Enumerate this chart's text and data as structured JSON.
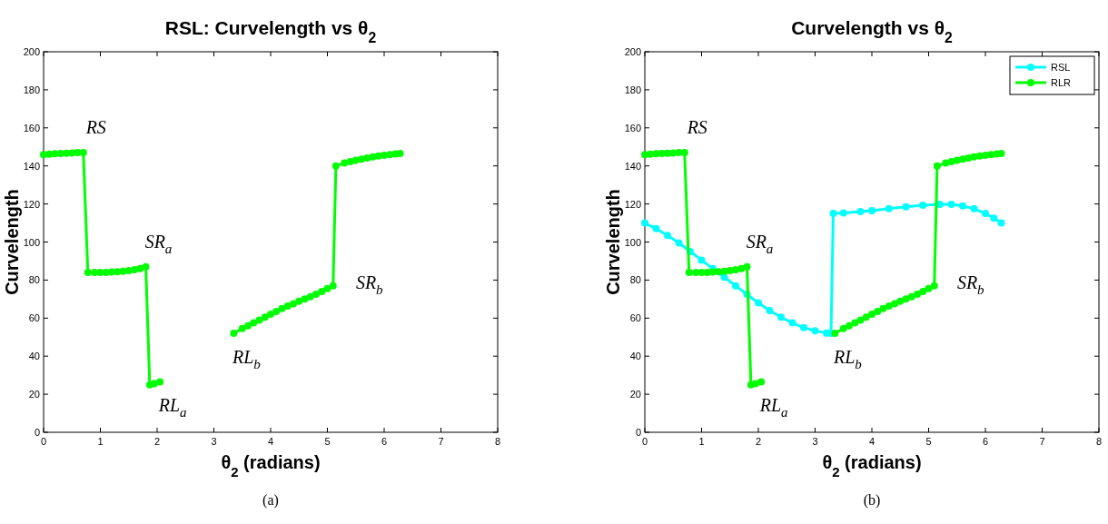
{
  "chart_data": [
    {
      "type": "line",
      "title": "RSL: Curvelength vs θ$_{2}$",
      "xlabel": "θ$_{2}$ (radians)",
      "ylabel": "Curvelength",
      "xlim": [
        0,
        8
      ],
      "ylim": [
        0,
        200
      ],
      "xticks": [
        0,
        1,
        2,
        3,
        4,
        5,
        6,
        7,
        8
      ],
      "yticks": [
        0,
        20,
        40,
        60,
        80,
        100,
        120,
        140,
        160,
        180,
        200
      ],
      "grid": false,
      "legend": false,
      "marker": "circle",
      "line_style": "solid",
      "series": [
        {
          "color": "#00ff00",
          "x": [
            0,
            0.1,
            0.2,
            0.3,
            0.4,
            0.5,
            0.6,
            0.7,
            0.78,
            0.9,
            1.0,
            1.1,
            1.2,
            1.3,
            1.4,
            1.5,
            1.6,
            1.7,
            1.8,
            1.87,
            1.95,
            2.05,
            2.7,
            3.35,
            3.5,
            3.6,
            3.7,
            3.8,
            3.9,
            4.0,
            4.1,
            4.2,
            4.3,
            4.4,
            4.5,
            4.6,
            4.7,
            4.8,
            4.9,
            5.0,
            5.1,
            5.15,
            5.3,
            5.4,
            5.5,
            5.6,
            5.7,
            5.8,
            5.9,
            6.0,
            6.1,
            6.2,
            6.28
          ],
          "values": [
            146,
            146.2,
            146.4,
            146.5,
            146.6,
            146.8,
            147,
            147,
            84,
            84,
            84,
            84,
            84.2,
            84.4,
            84.6,
            85,
            85.5,
            86,
            87,
            25,
            25.5,
            26.5,
            null,
            52,
            54.5,
            56,
            57.5,
            59,
            60.5,
            62,
            63.5,
            65,
            66.3,
            67.5,
            68.8,
            70,
            71.2,
            72.5,
            74,
            75.5,
            77,
            140,
            141.5,
            142.3,
            143,
            143.6,
            144.2,
            144.7,
            145.2,
            145.6,
            146,
            146.3,
            146.5
          ]
        }
      ],
      "annotations": [
        {
          "text": "RS",
          "x": 0.7,
          "y": 147
        },
        {
          "text": "SR$_{a}$",
          "x": 1.8,
          "y": 87
        },
        {
          "text": "RL$_{a}$",
          "x": 2.05,
          "y": 26.5
        },
        {
          "text": "RL$_{b}$",
          "x": 3.35,
          "y": 52
        },
        {
          "text": "SR$_{b}$",
          "x": 5.1,
          "y": 77
        },
        "(a)"
      ]
    },
    {
      "type": "line",
      "title": "Curvelength vs θ$_{2}$",
      "xlabel": "θ$_{2}$ (radians)",
      "ylabel": "Curvelength",
      "xlim": [
        0,
        8
      ],
      "ylim": [
        0,
        200
      ],
      "xticks": [
        0,
        1,
        2,
        3,
        4,
        5,
        6,
        7,
        8
      ],
      "yticks": [
        0,
        20,
        40,
        60,
        80,
        100,
        120,
        140,
        160,
        180,
        200
      ],
      "grid": false,
      "legend": "top right",
      "marker": "circle",
      "line_style": "solid",
      "series": [
        {
          "name": "RSL",
          "color": "#00ffff",
          "x": [
            0,
            0.2,
            0.4,
            0.6,
            0.8,
            1.0,
            1.2,
            1.4,
            1.6,
            1.8,
            2.0,
            2.2,
            2.4,
            2.6,
            2.8,
            3.0,
            3.2,
            3.28,
            3.32,
            3.5,
            3.8,
            4.0,
            4.3,
            4.6,
            4.9,
            5.2,
            5.4,
            5.6,
            5.8,
            6.0,
            6.15,
            6.28
          ],
          "values": [
            110,
            107,
            103.5,
            99.5,
            95,
            90.5,
            86,
            81.5,
            77,
            72.5,
            68,
            64,
            60.5,
            57.5,
            55,
            53.3,
            52.2,
            52,
            115,
            115.3,
            116,
            116.5,
            117.5,
            118.5,
            119.3,
            119.8,
            119.8,
            119,
            117.5,
            115,
            112.5,
            110
          ]
        },
        {
          "name": "RLR",
          "color": "#00ff00",
          "x": [
            0,
            0.1,
            0.2,
            0.3,
            0.4,
            0.5,
            0.6,
            0.7,
            0.78,
            0.9,
            1.0,
            1.1,
            1.2,
            1.3,
            1.4,
            1.5,
            1.6,
            1.7,
            1.8,
            1.87,
            1.95,
            2.05,
            2.7,
            3.35,
            3.5,
            3.6,
            3.7,
            3.8,
            3.9,
            4.0,
            4.1,
            4.2,
            4.3,
            4.4,
            4.5,
            4.6,
            4.7,
            4.8,
            4.9,
            5.0,
            5.1,
            5.15,
            5.3,
            5.4,
            5.5,
            5.6,
            5.7,
            5.8,
            5.9,
            6.0,
            6.1,
            6.2,
            6.28
          ],
          "values": [
            146,
            146.2,
            146.4,
            146.5,
            146.6,
            146.8,
            147,
            147,
            84,
            84,
            84,
            84,
            84.2,
            84.4,
            84.6,
            85,
            85.5,
            86,
            87,
            25,
            25.5,
            26.5,
            null,
            52,
            54.5,
            56,
            57.5,
            59,
            60.5,
            62,
            63.5,
            65,
            66.3,
            67.5,
            68.8,
            70,
            71.2,
            72.5,
            74,
            75.5,
            77,
            140,
            141.5,
            142.3,
            143,
            143.6,
            144.2,
            144.7,
            145.2,
            145.6,
            146,
            146.3,
            146.5
          ]
        }
      ],
      "annotations": [
        {
          "text": "RS",
          "x": 0.7,
          "y": 147
        },
        {
          "text": "SR$_{a}$",
          "x": 1.8,
          "y": 87
        },
        {
          "text": "RL$_{a}$",
          "x": 2.05,
          "y": 26.5
        },
        {
          "text": "RL$_{b}$",
          "x": 3.35,
          "y": 52
        },
        {
          "text": "SR$_{b}$",
          "x": 5.1,
          "y": 77
        },
        "(b)"
      ]
    }
  ]
}
